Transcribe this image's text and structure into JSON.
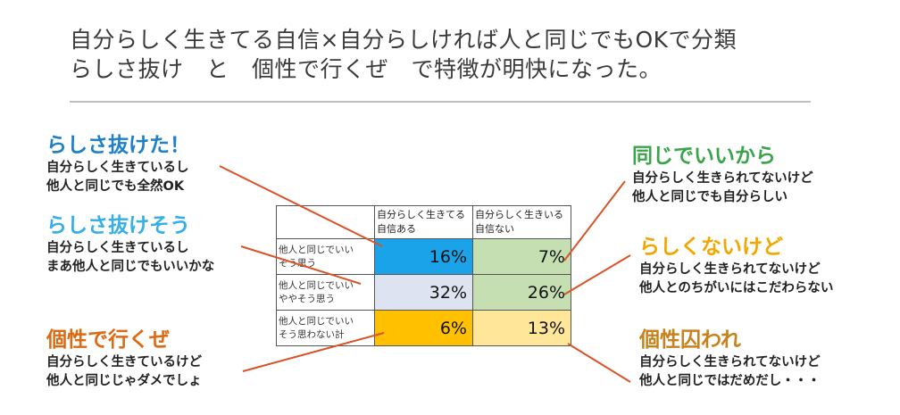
{
  "title": {
    "line1": "自分らしく生きてる自信×自分らしければ人と同じでもOKで分類",
    "line2": "らしさ抜け　と　個性で行くぜ　で特徴が明快になった。"
  },
  "labels": {
    "top_left": {
      "head": "らしさ抜けた！",
      "desc1": "自分らしく生きているし",
      "desc2": "他人と同じでも全然OK"
    },
    "mid_left": {
      "head": "らしさ抜けそう",
      "desc1": "自分らしく生きているし",
      "desc2": "まあ他人と同じでもいいかな"
    },
    "bot_left": {
      "head": "個性で行くぜ",
      "desc1": "自分らしく生きているけど",
      "desc2": "他人と同じじゃダメでしょ"
    },
    "top_right": {
      "head": "同じでいいから",
      "desc1": "自分らしく生きられてないけど",
      "desc2": "他人と同じでも自分らしい"
    },
    "mid_right": {
      "head": "らしくないけど",
      "desc1": "自分らしく生きられてないけど",
      "desc2": "他人とのちがいにはこだわらない"
    },
    "bot_right": {
      "head": "個性囚われ",
      "desc1": "自分らしく生きられてないけど",
      "desc2": "他人と同じではだめだし・・・"
    }
  },
  "table": {
    "col_headers": [
      {
        "line1": "自分らしく生きてる",
        "line2": "自信ある"
      },
      {
        "line1": "自分らしく生きいる",
        "line2": "自信ない"
      }
    ],
    "rows": [
      {
        "line1": "他人と同じでいい",
        "line2": "そう思う",
        "values": [
          "16%",
          "7%"
        ],
        "colors": [
          "#1aa3e8",
          "#c5dfb3"
        ]
      },
      {
        "line1": "他人と同じでいい",
        "line2": "ややそう思う",
        "values": [
          "32%",
          "26%"
        ],
        "colors": [
          "#dde3f1",
          "#c5dfb3"
        ]
      },
      {
        "line1": "他人と同じでいい",
        "line2": "そう思わない計",
        "values": [
          "6%",
          "13%"
        ],
        "colors": [
          "#ffc000",
          "#ffe699"
        ]
      }
    ]
  },
  "colors": {
    "connector": "#d9542a",
    "rule": "#bfbfbf"
  }
}
